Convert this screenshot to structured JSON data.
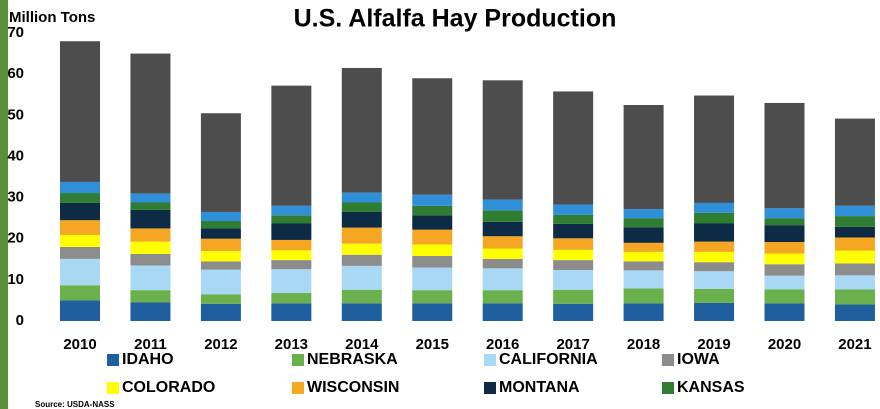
{
  "chart_data": {
    "type": "stacked_bar",
    "title": "U.S. Alfalfa Hay Production",
    "y_label": "Million Tons",
    "source": "Source: USDA-NASS",
    "categories": [
      "2010",
      "2011",
      "2012",
      "2013",
      "2014",
      "2015",
      "2016",
      "2017",
      "2018",
      "2019",
      "2020",
      "2021"
    ],
    "ylim": [
      0,
      70
    ],
    "yticks": [
      0,
      10,
      20,
      30,
      40,
      50,
      60,
      70
    ],
    "grid": false,
    "series": [
      {
        "name": "IDAHO",
        "color": "#1f5f9e",
        "values": [
          5.0,
          4.5,
          4.2,
          4.3,
          4.3,
          4.3,
          4.3,
          4.2,
          4.3,
          4.4,
          4.3,
          4.0
        ]
      },
      {
        "name": "NEBRASKA",
        "color": "#6ab04c",
        "values": [
          3.7,
          3.0,
          2.3,
          2.5,
          3.3,
          3.2,
          3.2,
          3.4,
          3.6,
          3.4,
          3.4,
          3.7
        ]
      },
      {
        "name": "CALIFORNIA",
        "color": "#a9d8f5",
        "values": [
          6.4,
          6.0,
          6.0,
          5.8,
          5.8,
          5.5,
          5.3,
          4.8,
          4.4,
          4.3,
          3.3,
          3.4
        ]
      },
      {
        "name": "IOWA",
        "color": "#8c8c8c",
        "values": [
          2.9,
          2.8,
          2.0,
          2.2,
          2.7,
          2.8,
          2.3,
          2.4,
          2.2,
          2.2,
          2.8,
          2.9
        ]
      },
      {
        "name": "COLORADO",
        "color": "#ffff00",
        "values": [
          2.9,
          3.0,
          2.5,
          2.4,
          2.7,
          2.8,
          2.5,
          2.5,
          2.3,
          2.5,
          2.6,
          3.1
        ]
      },
      {
        "name": "WISCONSIN",
        "color": "#f5a623",
        "values": [
          3.6,
          3.2,
          3.0,
          2.5,
          3.9,
          3.6,
          3.0,
          2.8,
          2.2,
          2.5,
          2.8,
          3.2
        ]
      },
      {
        "name": "MONTANA",
        "color": "#0d2b45",
        "values": [
          4.2,
          4.5,
          2.5,
          4.0,
          3.8,
          3.5,
          3.5,
          3.5,
          3.8,
          4.4,
          4.1,
          2.6
        ]
      },
      {
        "name": "KANSAS",
        "color": "#2e7d32",
        "values": [
          2.4,
          1.8,
          1.8,
          2.0,
          2.3,
          2.3,
          2.8,
          2.2,
          2.2,
          2.6,
          1.7,
          2.6
        ]
      },
      {
        "color": "#2f8fd8",
        "values": [
          2.7,
          2.2,
          2.2,
          2.3,
          2.4,
          2.7,
          2.6,
          2.5,
          2.2,
          2.4,
          2.4,
          2.5
        ]
      },
      {
        "color": "#4d4d4d",
        "values": [
          34.2,
          34.0,
          24.0,
          29.2,
          30.3,
          28.3,
          29.0,
          27.5,
          25.3,
          26.1,
          25.6,
          21.2
        ]
      }
    ]
  }
}
